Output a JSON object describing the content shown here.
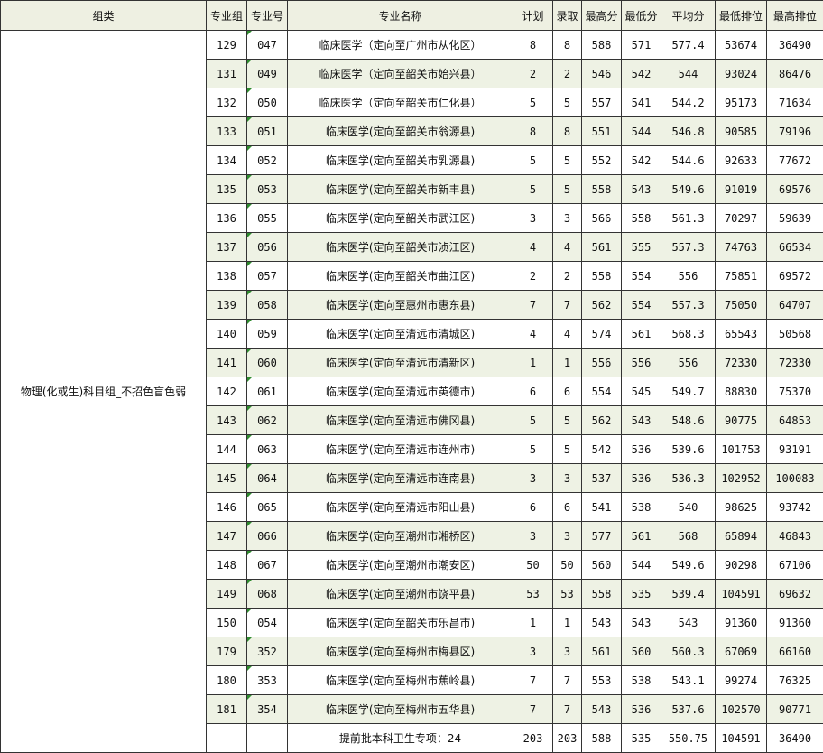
{
  "headers": [
    "组类",
    "专业组",
    "专业号",
    "专业名称",
    "计划",
    "录取",
    "最高分",
    "最低分",
    "平均分",
    "最低排位",
    "最高排位"
  ],
  "group": "物理(化或生)科目组_不招色盲色弱",
  "rows": [
    [
      "129",
      "047",
      "临床医学（定向至广州市从化区）",
      "8",
      "8",
      "588",
      "571",
      "577.4",
      "53674",
      "36490"
    ],
    [
      "131",
      "049",
      "临床医学（定向至韶关市始兴县）",
      "2",
      "2",
      "546",
      "542",
      "544",
      "93024",
      "86476"
    ],
    [
      "132",
      "050",
      "临床医学（定向至韶关市仁化县）",
      "5",
      "5",
      "557",
      "541",
      "544.2",
      "95173",
      "71634"
    ],
    [
      "133",
      "051",
      "临床医学(定向至韶关市翁源县)",
      "8",
      "8",
      "551",
      "544",
      "546.8",
      "90585",
      "79196"
    ],
    [
      "134",
      "052",
      "临床医学(定向至韶关市乳源县)",
      "5",
      "5",
      "552",
      "542",
      "544.6",
      "92633",
      "77672"
    ],
    [
      "135",
      "053",
      "临床医学(定向至韶关市新丰县)",
      "5",
      "5",
      "558",
      "543",
      "549.6",
      "91019",
      "69576"
    ],
    [
      "136",
      "055",
      "临床医学(定向至韶关市武江区)",
      "3",
      "3",
      "566",
      "558",
      "561.3",
      "70297",
      "59639"
    ],
    [
      "137",
      "056",
      "临床医学(定向至韶关市浈江区)",
      "4",
      "4",
      "561",
      "555",
      "557.3",
      "74763",
      "66534"
    ],
    [
      "138",
      "057",
      "临床医学(定向至韶关市曲江区)",
      "2",
      "2",
      "558",
      "554",
      "556",
      "75851",
      "69572"
    ],
    [
      "139",
      "058",
      "临床医学(定向至惠州市惠东县)",
      "7",
      "7",
      "562",
      "554",
      "557.3",
      "75050",
      "64707"
    ],
    [
      "140",
      "059",
      "临床医学(定向至清远市清城区)",
      "4",
      "4",
      "574",
      "561",
      "568.3",
      "65543",
      "50568"
    ],
    [
      "141",
      "060",
      "临床医学(定向至清远市清新区)",
      "1",
      "1",
      "556",
      "556",
      "556",
      "72330",
      "72330"
    ],
    [
      "142",
      "061",
      "临床医学(定向至清远市英德市)",
      "6",
      "6",
      "554",
      "545",
      "549.7",
      "88830",
      "75370"
    ],
    [
      "143",
      "062",
      "临床医学(定向至清远市佛冈县)",
      "5",
      "5",
      "562",
      "543",
      "548.6",
      "90775",
      "64853"
    ],
    [
      "144",
      "063",
      "临床医学(定向至清远市连州市)",
      "5",
      "5",
      "542",
      "536",
      "539.6",
      "101753",
      "93191"
    ],
    [
      "145",
      "064",
      "临床医学(定向至清远市连南县)",
      "3",
      "3",
      "537",
      "536",
      "536.3",
      "102952",
      "100083"
    ],
    [
      "146",
      "065",
      "临床医学(定向至清远市阳山县)",
      "6",
      "6",
      "541",
      "538",
      "540",
      "98625",
      "93742"
    ],
    [
      "147",
      "066",
      "临床医学(定向至潮州市湘桥区)",
      "3",
      "3",
      "577",
      "561",
      "568",
      "65894",
      "46843"
    ],
    [
      "148",
      "067",
      "临床医学(定向至潮州市潮安区)",
      "50",
      "50",
      "560",
      "544",
      "549.6",
      "90298",
      "67106"
    ],
    [
      "149",
      "068",
      "临床医学(定向至潮州市饶平县)",
      "53",
      "53",
      "558",
      "535",
      "539.4",
      "104591",
      "69632"
    ],
    [
      "150",
      "054",
      "临床医学(定向至韶关市乐昌市)",
      "1",
      "1",
      "543",
      "543",
      "543",
      "91360",
      "91360"
    ],
    [
      "179",
      "352",
      "临床医学(定向至梅州市梅县区)",
      "3",
      "3",
      "561",
      "560",
      "560.3",
      "67069",
      "66160"
    ],
    [
      "180",
      "353",
      "临床医学(定向至梅州市蕉岭县)",
      "7",
      "7",
      "553",
      "538",
      "543.1",
      "99274",
      "76325"
    ],
    [
      "181",
      "354",
      "临床医学(定向至梅州市五华县)",
      "7",
      "7",
      "543",
      "536",
      "537.6",
      "102570",
      "90771"
    ]
  ],
  "total": [
    "",
    "",
    "提前批本科卫生专项：24",
    "203",
    "203",
    "588",
    "535",
    "550.75",
    "104591",
    "36490"
  ],
  "colors": {
    "header_bg": "#eef0e2",
    "alt_row_bg": "#eef2e4",
    "corner_marker": "#2e8b2e"
  }
}
